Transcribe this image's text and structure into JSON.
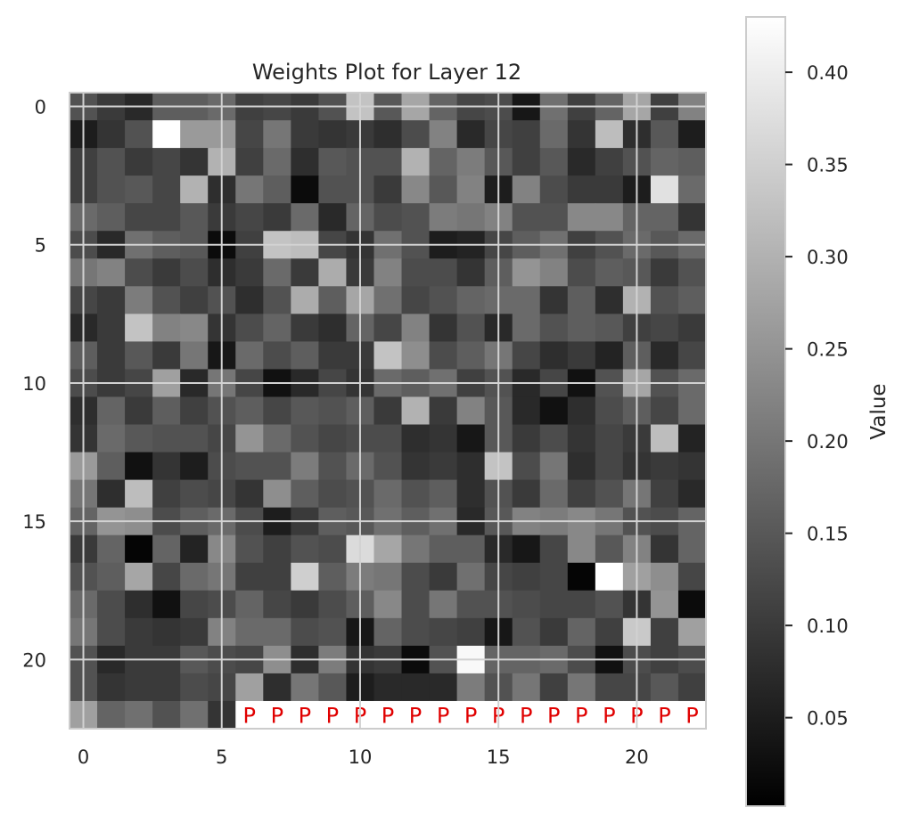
{
  "chart_data": {
    "type": "heatmap",
    "title": "Weights Plot for Layer 12",
    "colormap": "gray",
    "grid": true,
    "rows": 23,
    "cols": 23,
    "x_ticks": [
      "0",
      "5",
      "10",
      "15",
      "20"
    ],
    "y_ticks": [
      "0",
      "5",
      "10",
      "15",
      "20"
    ],
    "x_tick_values": [
      0,
      5,
      10,
      15,
      20
    ],
    "y_tick_values": [
      0,
      5,
      10,
      15,
      20
    ],
    "colorbar": {
      "label": "Value",
      "min": 0.002,
      "max": 0.43,
      "ticks": [
        "0.05",
        "0.10",
        "0.15",
        "0.20",
        "0.25",
        "0.30",
        "0.35",
        "0.40"
      ],
      "tick_values": [
        0.05,
        0.1,
        0.15,
        0.2,
        0.25,
        0.3,
        0.35,
        0.4
      ]
    },
    "padding": {
      "marker": "P",
      "color": "#e00000",
      "row": 22,
      "col_start": 6,
      "col_end": 22
    },
    "values": [
      [
        0.14,
        0.1,
        0.07,
        0.16,
        0.16,
        0.18,
        0.11,
        0.12,
        0.1,
        0.14,
        0.33,
        0.15,
        0.28,
        0.17,
        0.12,
        0.13,
        0.04,
        0.19,
        0.11,
        0.17,
        0.28,
        0.11,
        0.22
      ],
      [
        0.05,
        0.09,
        0.14,
        0.43,
        0.26,
        0.26,
        0.12,
        0.2,
        0.1,
        0.09,
        0.1,
        0.08,
        0.13,
        0.22,
        0.07,
        0.12,
        0.11,
        0.18,
        0.09,
        0.32,
        0.08,
        0.15,
        0.05
      ],
      [
        0.11,
        0.14,
        0.1,
        0.12,
        0.09,
        0.3,
        0.11,
        0.18,
        0.08,
        0.15,
        0.14,
        0.14,
        0.3,
        0.17,
        0.21,
        0.15,
        0.11,
        0.15,
        0.07,
        0.11,
        0.14,
        0.17,
        0.16
      ],
      [
        0.11,
        0.14,
        0.15,
        0.12,
        0.3,
        0.08,
        0.2,
        0.16,
        0.02,
        0.14,
        0.14,
        0.1,
        0.23,
        0.15,
        0.22,
        0.05,
        0.22,
        0.13,
        0.1,
        0.1,
        0.05,
        0.38,
        0.18
      ],
      [
        0.18,
        0.16,
        0.12,
        0.12,
        0.15,
        0.1,
        0.12,
        0.1,
        0.18,
        0.07,
        0.17,
        0.13,
        0.14,
        0.21,
        0.2,
        0.22,
        0.14,
        0.14,
        0.23,
        0.23,
        0.17,
        0.17,
        0.09
      ],
      [
        0.13,
        0.07,
        0.19,
        0.16,
        0.15,
        0.02,
        0.11,
        0.33,
        0.32,
        0.12,
        0.09,
        0.19,
        0.14,
        0.05,
        0.06,
        0.12,
        0.16,
        0.19,
        0.11,
        0.14,
        0.18,
        0.15,
        0.18
      ],
      [
        0.2,
        0.22,
        0.13,
        0.1,
        0.13,
        0.08,
        0.1,
        0.18,
        0.1,
        0.29,
        0.1,
        0.22,
        0.13,
        0.13,
        0.09,
        0.16,
        0.25,
        0.22,
        0.13,
        0.16,
        0.15,
        0.1,
        0.14
      ],
      [
        0.12,
        0.1,
        0.21,
        0.14,
        0.11,
        0.14,
        0.08,
        0.14,
        0.29,
        0.16,
        0.28,
        0.19,
        0.12,
        0.14,
        0.17,
        0.18,
        0.18,
        0.09,
        0.16,
        0.08,
        0.3,
        0.14,
        0.16
      ],
      [
        0.07,
        0.1,
        0.33,
        0.22,
        0.23,
        0.09,
        0.13,
        0.17,
        0.1,
        0.08,
        0.17,
        0.12,
        0.22,
        0.09,
        0.14,
        0.07,
        0.18,
        0.14,
        0.16,
        0.15,
        0.11,
        0.12,
        0.1
      ],
      [
        0.16,
        0.1,
        0.15,
        0.1,
        0.2,
        0.04,
        0.18,
        0.13,
        0.16,
        0.1,
        0.1,
        0.33,
        0.24,
        0.13,
        0.16,
        0.2,
        0.12,
        0.08,
        0.1,
        0.06,
        0.16,
        0.07,
        0.12
      ],
      [
        0.13,
        0.1,
        0.12,
        0.27,
        0.07,
        0.2,
        0.12,
        0.03,
        0.07,
        0.12,
        0.09,
        0.18,
        0.16,
        0.19,
        0.11,
        0.14,
        0.07,
        0.12,
        0.03,
        0.14,
        0.28,
        0.14,
        0.18
      ],
      [
        0.08,
        0.17,
        0.1,
        0.16,
        0.11,
        0.14,
        0.16,
        0.12,
        0.15,
        0.14,
        0.16,
        0.1,
        0.3,
        0.1,
        0.22,
        0.15,
        0.07,
        0.03,
        0.08,
        0.13,
        0.16,
        0.12,
        0.18
      ],
      [
        0.09,
        0.18,
        0.15,
        0.14,
        0.14,
        0.12,
        0.25,
        0.18,
        0.14,
        0.12,
        0.13,
        0.13,
        0.08,
        0.09,
        0.04,
        0.15,
        0.1,
        0.13,
        0.09,
        0.12,
        0.1,
        0.32,
        0.06
      ],
      [
        0.26,
        0.16,
        0.03,
        0.09,
        0.05,
        0.13,
        0.14,
        0.14,
        0.21,
        0.14,
        0.18,
        0.14,
        0.09,
        0.1,
        0.08,
        0.33,
        0.13,
        0.2,
        0.08,
        0.12,
        0.09,
        0.1,
        0.09
      ],
      [
        0.2,
        0.08,
        0.32,
        0.11,
        0.13,
        0.12,
        0.09,
        0.24,
        0.16,
        0.13,
        0.14,
        0.18,
        0.14,
        0.16,
        0.08,
        0.14,
        0.1,
        0.18,
        0.11,
        0.14,
        0.2,
        0.11,
        0.07
      ],
      [
        0.17,
        0.25,
        0.24,
        0.13,
        0.16,
        0.18,
        0.13,
        0.05,
        0.1,
        0.16,
        0.15,
        0.19,
        0.16,
        0.19,
        0.07,
        0.15,
        0.22,
        0.21,
        0.23,
        0.2,
        0.14,
        0.13,
        0.17
      ],
      [
        0.1,
        0.17,
        0.01,
        0.17,
        0.06,
        0.23,
        0.14,
        0.11,
        0.14,
        0.13,
        0.37,
        0.28,
        0.2,
        0.16,
        0.16,
        0.07,
        0.04,
        0.12,
        0.23,
        0.15,
        0.22,
        0.09,
        0.17
      ],
      [
        0.14,
        0.16,
        0.28,
        0.12,
        0.18,
        0.2,
        0.11,
        0.11,
        0.35,
        0.16,
        0.21,
        0.2,
        0.13,
        0.1,
        0.19,
        0.12,
        0.11,
        0.12,
        0.01,
        0.43,
        0.27,
        0.24,
        0.12
      ],
      [
        0.18,
        0.13,
        0.08,
        0.03,
        0.12,
        0.13,
        0.17,
        0.12,
        0.1,
        0.13,
        0.16,
        0.23,
        0.13,
        0.2,
        0.14,
        0.14,
        0.13,
        0.12,
        0.12,
        0.14,
        0.09,
        0.25,
        0.02
      ],
      [
        0.2,
        0.13,
        0.1,
        0.09,
        0.1,
        0.22,
        0.18,
        0.18,
        0.13,
        0.14,
        0.04,
        0.17,
        0.13,
        0.12,
        0.11,
        0.04,
        0.14,
        0.1,
        0.17,
        0.11,
        0.34,
        0.11,
        0.27
      ],
      [
        0.14,
        0.07,
        0.1,
        0.1,
        0.15,
        0.13,
        0.12,
        0.24,
        0.08,
        0.21,
        0.09,
        0.1,
        0.02,
        0.14,
        0.42,
        0.17,
        0.17,
        0.18,
        0.13,
        0.03,
        0.13,
        0.11,
        0.13
      ],
      [
        0.14,
        0.09,
        0.1,
        0.1,
        0.13,
        0.12,
        0.27,
        0.08,
        0.2,
        0.15,
        0.05,
        0.07,
        0.07,
        0.07,
        0.21,
        0.14,
        0.2,
        0.11,
        0.2,
        0.12,
        0.12,
        0.15,
        0.11
      ],
      [
        0.27,
        0.17,
        0.19,
        0.14,
        0.19,
        0.09,
        0.0,
        0.0,
        0.0,
        0.0,
        0.0,
        0.0,
        0.0,
        0.0,
        0.0,
        0.0,
        0.0,
        0.0,
        0.0,
        0.0,
        0.0,
        0.0,
        0.0
      ]
    ]
  }
}
